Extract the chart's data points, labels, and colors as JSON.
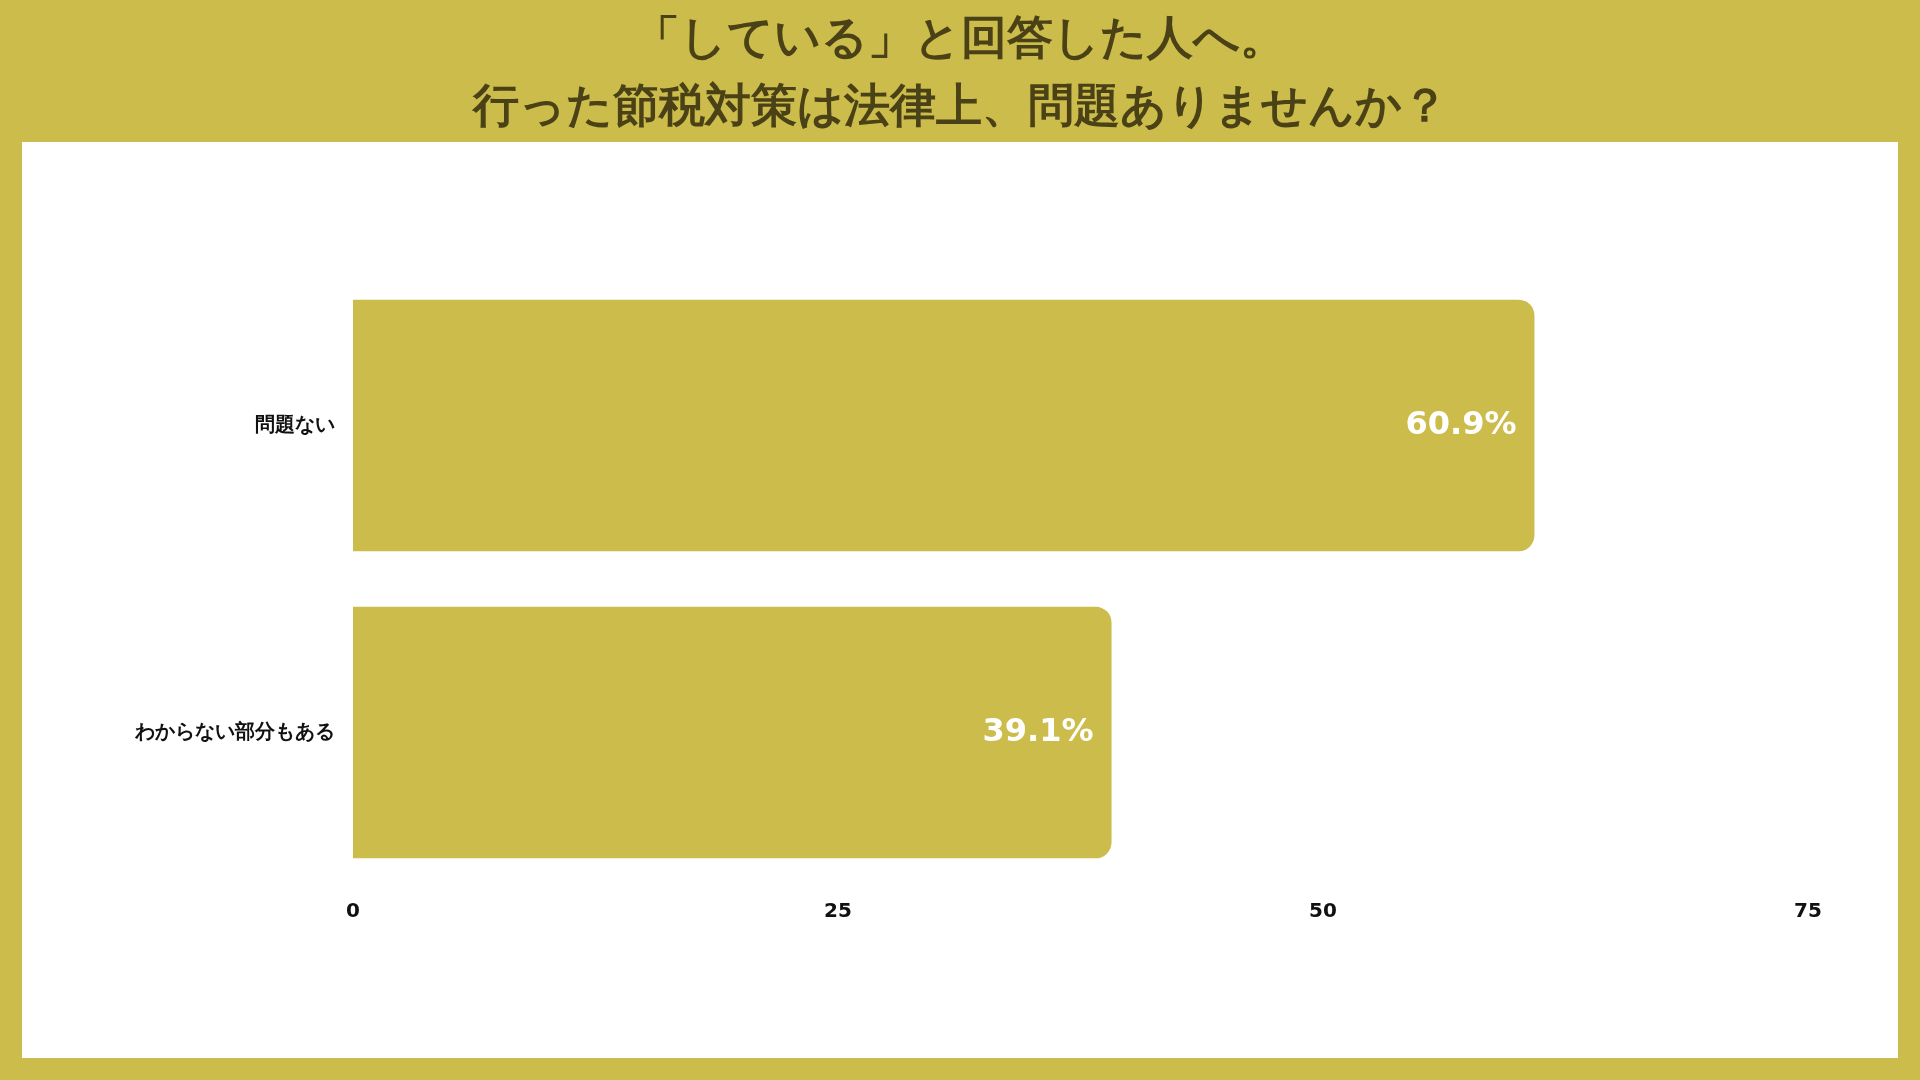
{
  "chart_data": {
    "type": "bar",
    "orientation": "horizontal",
    "title": "「している」と回答した人へ。",
    "subtitle": "行った節税対策は法律上、問題ありませんか？",
    "categories": [
      "問題ない",
      "わからない部分もある"
    ],
    "values": [
      60.9,
      39.1
    ],
    "color": "#cbbc4b",
    "value_labels": [
      "60.9%",
      "39.1%"
    ],
    "xlim": [
      0,
      75
    ],
    "xticks": [
      0,
      25,
      50,
      75
    ],
    "grid": false,
    "legend": false
  }
}
